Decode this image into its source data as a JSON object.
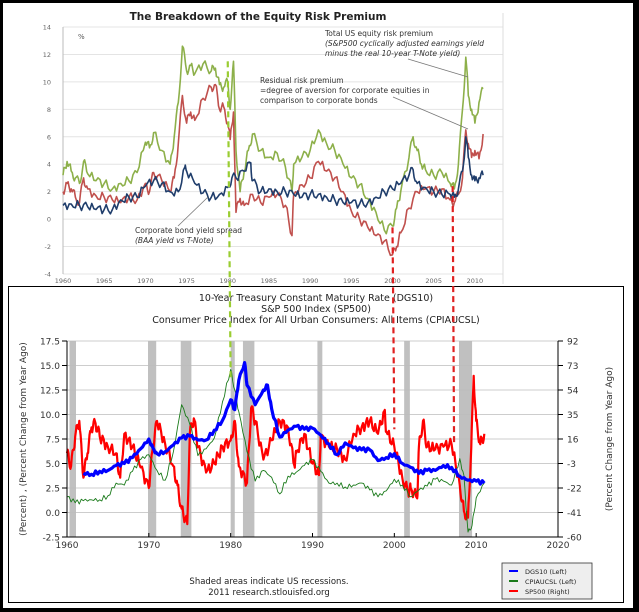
{
  "chart_data": [
    {
      "type": "line",
      "title": "The Breakdown of the Equity Risk Premium",
      "ylabel": "%",
      "xlim": [
        1960,
        2012
      ],
      "ylim": [
        -4,
        14
      ],
      "yticks": [
        14,
        12,
        10,
        8,
        6,
        4,
        2,
        0,
        -2,
        -4
      ],
      "xticks": [
        1960,
        1965,
        1970,
        1975,
        1980,
        1985,
        1990,
        1995,
        2000,
        2005,
        2010
      ],
      "grid": true,
      "annotations": [
        {
          "lines": [
            "Total US equity risk premium",
            "(S&P500 cyclically adjusted earnings yield",
            "minus the real 10-year T-Note yield)"
          ]
        },
        {
          "lines": [
            "Residual risk premium",
            "=degree of aversion for corporate equities in",
            "comparison to corporate bonds"
          ]
        },
        {
          "lines": [
            "Corporate bond yield spread",
            "(BAA yield vs T-Note)"
          ]
        }
      ],
      "series": [
        {
          "name": "Total US equity risk premium",
          "color": "#8db04a",
          "x": [
            1960,
            1960.5,
            1961,
            1961.5,
            1962,
            1962.5,
            1963,
            1964,
            1965,
            1966,
            1967,
            1968,
            1969,
            1970,
            1970.5,
            1971,
            1972,
            1973,
            1973.5,
            1974,
            1974.5,
            1975,
            1975.5,
            1976,
            1977,
            1978,
            1978.5,
            1979,
            1979.5,
            1980,
            1980.3,
            1980.7,
            1981,
            1981.5,
            1982,
            1982.5,
            1983,
            1984,
            1985,
            1986,
            1987,
            1987.8,
            1988,
            1989,
            1990,
            1991,
            1992,
            1993,
            1994,
            1995,
            1996,
            1997,
            1998,
            1999,
            2000,
            2000.5,
            2001,
            2002,
            2002.5,
            2003,
            2003.5,
            2004,
            2005,
            2006,
            2007,
            2007.5,
            2008,
            2008.5,
            2008.9,
            2009.2,
            2009.6,
            2010,
            2010.5,
            2011
          ],
          "y": [
            3.2,
            4.2,
            3.5,
            3.0,
            2.6,
            4.2,
            3.3,
            2.8,
            2.6,
            2.2,
            2.6,
            2.8,
            3.4,
            5.6,
            5.2,
            6.3,
            5.0,
            4.0,
            6.0,
            8.5,
            12.6,
            10.8,
            11.2,
            10.6,
            11.3,
            10.8,
            11.0,
            9.8,
            9.6,
            10.0,
            8.0,
            11.5,
            5.0,
            2.0,
            3.5,
            5.0,
            6.2,
            5.0,
            4.5,
            4.8,
            3.8,
            2.0,
            4.0,
            4.5,
            5.0,
            6.5,
            5.5,
            5.0,
            4.0,
            3.0,
            2.5,
            1.5,
            0.5,
            -0.8,
            -0.5,
            0.8,
            2.0,
            4.5,
            6.0,
            5.0,
            4.0,
            3.6,
            3.2,
            3.4,
            2.6,
            2.2,
            4.0,
            8.0,
            11.8,
            9.0,
            8.0,
            7.0,
            8.5,
            9.5
          ]
        },
        {
          "name": "Residual risk premium",
          "color": "#c0504d",
          "x": [
            1960,
            1960.5,
            1961,
            1961.5,
            1962,
            1962.5,
            1963,
            1964,
            1965,
            1966,
            1967,
            1968,
            1969,
            1970,
            1970.5,
            1971,
            1972,
            1973,
            1973.5,
            1974,
            1974.5,
            1975,
            1975.5,
            1976,
            1977,
            1978,
            1978.5,
            1979,
            1979.5,
            1980,
            1980.3,
            1980.7,
            1981,
            1981.5,
            1982,
            1983,
            1984,
            1985,
            1986,
            1987,
            1987.8,
            1988,
            1989,
            1990,
            1991,
            1992,
            1993,
            1994,
            1995,
            1996,
            1997,
            1998,
            1999,
            2000,
            2000.5,
            2001,
            2002,
            2003,
            2004,
            2005,
            2006,
            2007,
            2007.5,
            2008,
            2008.5,
            2008.9,
            2009.2,
            2009.6,
            2010,
            2010.5,
            2011
          ],
          "y": [
            2.0,
            2.6,
            2.2,
            1.6,
            1.2,
            3.0,
            2.2,
            1.7,
            1.6,
            1.4,
            1.2,
            1.6,
            1.4,
            2.6,
            2.0,
            3.4,
            2.8,
            2.0,
            3.0,
            5.5,
            9.0,
            7.0,
            7.8,
            7.2,
            8.8,
            9.6,
            9.8,
            8.0,
            8.2,
            7.0,
            5.8,
            7.8,
            0.5,
            1.5,
            1.0,
            1.8,
            1.2,
            1.6,
            1.8,
            1.0,
            -1.2,
            1.8,
            2.5,
            3.0,
            4.2,
            3.5,
            3.0,
            2.0,
            0.6,
            0.0,
            -0.6,
            -1.2,
            -1.6,
            -2.6,
            -2.0,
            -1.0,
            0.8,
            2.0,
            2.2,
            2.0,
            2.2,
            1.4,
            1.2,
            1.8,
            3.0,
            6.5,
            5.5,
            4.5,
            5.0,
            4.4,
            6.2
          ]
        },
        {
          "name": "Corporate bond yield spread",
          "color": "#1f3d6b",
          "x": [
            1960,
            1961,
            1962,
            1963,
            1964,
            1965,
            1966,
            1967,
            1968,
            1969,
            1970,
            1971,
            1972,
            1973,
            1974,
            1974.8,
            1975,
            1976,
            1977,
            1978,
            1979,
            1980,
            1980.5,
            1981,
            1982,
            1982.8,
            1983,
            1984,
            1985,
            1986,
            1987,
            1988,
            1989,
            1990,
            1991,
            1992,
            1993,
            1994,
            1995,
            1996,
            1997,
            1998,
            1999,
            2000,
            2001,
            2002,
            2002.5,
            2003,
            2004,
            2005,
            2006,
            2007,
            2007.5,
            2008,
            2008.5,
            2008.9,
            2009.2,
            2009.6,
            2010,
            2010.5,
            2011
          ],
          "y": [
            1.0,
            1.1,
            1.0,
            0.9,
            0.7,
            0.7,
            0.7,
            1.4,
            1.6,
            1.6,
            2.4,
            2.8,
            2.6,
            2.0,
            2.0,
            3.8,
            3.5,
            2.6,
            1.9,
            1.6,
            1.8,
            2.3,
            3.0,
            3.0,
            3.5,
            4.1,
            2.8,
            2.0,
            2.2,
            2.0,
            2.0,
            1.8,
            1.6,
            1.8,
            1.8,
            1.6,
            1.4,
            1.2,
            1.2,
            1.1,
            1.2,
            1.6,
            2.0,
            2.2,
            2.6,
            3.2,
            3.6,
            2.6,
            2.3,
            2.0,
            1.8,
            1.8,
            1.6,
            2.2,
            3.5,
            6.0,
            4.5,
            3.2,
            2.8,
            3.0,
            3.2
          ]
        }
      ],
      "reference_lines": [
        {
          "x": 1980,
          "color": "#9acd32",
          "style": "dashed"
        },
        {
          "x": 2000,
          "color": "#e02020",
          "style": "dashed"
        },
        {
          "x": 2007.3,
          "color": "#e02020",
          "style": "dashed"
        }
      ]
    },
    {
      "type": "line",
      "title_lines": [
        "10-Year Treasury Constant Maturity Rate (DGS10)",
        "S&P 500 Index (SP500)",
        "Consumer Price Index for All Urban Consumers: All Items (CPIAUCSL)"
      ],
      "ylabel_left": "(Percent) , (Percent Change from Year Ago)",
      "ylabel_right": "(Percent Change from Year Ago)",
      "xlim": [
        1960,
        2020
      ],
      "ylim_left": [
        -2.5,
        17.5
      ],
      "ylim_right": [
        -60,
        92
      ],
      "yticks_left": [
        "17.5",
        "15.0",
        "12.5",
        "10.0",
        "7.5",
        "5.0",
        "2.5",
        "0.0",
        "-2.5"
      ],
      "yticks_right": [
        "92",
        "73",
        "54",
        "35",
        "16",
        "-3",
        "-22",
        "-41",
        "-60"
      ],
      "xticks": [
        "1960",
        "1970",
        "1980",
        "1990",
        "2000",
        "2010",
        "2020"
      ],
      "grid": true,
      "footnote": [
        "Shaded areas indicate US recessions.",
        "2011 research.stlouisfed.org"
      ],
      "legend_position": "bottom-right",
      "legend": [
        "DGS10 (Left)",
        "CPIAUCSL (Left)",
        "SP500 (Right)"
      ],
      "recessions": [
        [
          1960.3,
          1961.1
        ],
        [
          1969.9,
          1970.9
        ],
        [
          1973.9,
          1975.2
        ],
        [
          1980.0,
          1980.5
        ],
        [
          1981.5,
          1982.9
        ],
        [
          1990.6,
          1991.2
        ],
        [
          2001.2,
          2001.9
        ],
        [
          2007.9,
          2009.5
        ]
      ],
      "series": [
        {
          "name": "DGS10 (Left)",
          "color": "#0000ff",
          "axis": "left",
          "x": [
            1962,
            1963,
            1964,
            1965,
            1966,
            1967,
            1968,
            1969,
            1970,
            1970.5,
            1971,
            1972,
            1973,
            1974,
            1975,
            1976,
            1977,
            1978,
            1979,
            1980,
            1980.5,
            1981,
            1981.7,
            1982,
            1983,
            1984,
            1984.5,
            1985,
            1986,
            1987,
            1988,
            1989,
            1990,
            1991,
            1992,
            1993,
            1994,
            1995,
            1996,
            1997,
            1998,
            1999,
            2000,
            2001,
            2002,
            2003,
            2004,
            2005,
            2006,
            2007,
            2008,
            2009,
            2010,
            2011
          ],
          "y": [
            4.0,
            3.9,
            4.2,
            4.3,
            4.8,
            5.0,
            5.6,
            6.5,
            7.5,
            6.6,
            6.0,
            6.2,
            6.9,
            7.6,
            7.8,
            7.4,
            7.4,
            8.4,
            9.4,
            11.5,
            10.5,
            13.5,
            15.3,
            13.0,
            11.0,
            12.5,
            13.0,
            10.6,
            7.7,
            8.4,
            8.8,
            8.5,
            8.6,
            7.9,
            7.0,
            5.9,
            7.1,
            6.6,
            6.4,
            6.4,
            5.3,
            5.6,
            6.0,
            5.0,
            4.6,
            4.0,
            4.3,
            4.3,
            4.8,
            4.6,
            3.7,
            3.3,
            3.2,
            3.0
          ]
        },
        {
          "name": "CPIAUCSL (Left)",
          "color": "#1a7a1a",
          "axis": "left",
          "x": [
            1960,
            1961,
            1962,
            1963,
            1964,
            1965,
            1966,
            1967,
            1968,
            1969,
            1970,
            1971,
            1972,
            1973,
            1974,
            1975,
            1976,
            1977,
            1978,
            1979,
            1980,
            1980.5,
            1981,
            1982,
            1983,
            1984,
            1985,
            1986,
            1987,
            1988,
            1989,
            1990,
            1991,
            1992,
            1993,
            1994,
            1995,
            1996,
            1997,
            1998,
            1999,
            2000,
            2001,
            2002,
            2003,
            2004,
            2005,
            2006,
            2007,
            2008,
            2008.5,
            2009,
            2009.5,
            2010,
            2011
          ],
          "y": [
            1.6,
            1.0,
            1.2,
            1.3,
            1.3,
            1.7,
            3.0,
            2.8,
            4.2,
            5.4,
            5.9,
            4.3,
            3.3,
            6.2,
            11.0,
            9.0,
            5.8,
            6.5,
            7.6,
            11.3,
            14.6,
            12.5,
            10.3,
            6.2,
            3.2,
            4.3,
            3.6,
            1.9,
            3.7,
            4.1,
            4.8,
            5.4,
            4.2,
            3.0,
            3.0,
            2.6,
            2.8,
            3.0,
            2.3,
            1.6,
            2.2,
            3.4,
            2.8,
            1.6,
            2.3,
            2.7,
            3.4,
            3.2,
            2.8,
            5.5,
            3.8,
            -2.0,
            -1.3,
            1.5,
            3.0
          ]
        },
        {
          "name": "SP500 (Right)",
          "color": "#ff0000",
          "axis": "right",
          "x": [
            1960,
            1960.5,
            1961,
            1961.5,
            1962,
            1962.5,
            1963,
            1963.5,
            1964,
            1965,
            1966,
            1966.5,
            1967,
            1968,
            1969,
            1970,
            1970.5,
            1971,
            1972,
            1973,
            1973.5,
            1974,
            1974.7,
            1975,
            1975.5,
            1976,
            1977,
            1978,
            1979,
            1980,
            1980.5,
            1981,
            1982,
            1982.5,
            1983,
            1984,
            1985,
            1986,
            1987,
            1987.8,
            1988,
            1989,
            1990,
            1990.8,
            1991,
            1992,
            1993,
            1994,
            1995,
            1996,
            1997,
            1998,
            1998.8,
            1999,
            2000,
            2001,
            2001.7,
            2002,
            2002.8,
            2003,
            2003.5,
            2004,
            2005,
            2006,
            2007,
            2008,
            2008.5,
            2009,
            2009.4,
            2009.7,
            2010,
            2010.5,
            2011
          ],
          "y": [
            5,
            -5,
            18,
            30,
            -14,
            5,
            25,
            28,
            18,
            10,
            5,
            -14,
            20,
            10,
            -6,
            -22,
            10,
            30,
            12,
            -5,
            -20,
            -38,
            -50,
            20,
            32,
            10,
            -10,
            -3,
            10,
            15,
            30,
            -5,
            -18,
            40,
            30,
            0,
            15,
            30,
            25,
            -5,
            5,
            20,
            -3,
            -12,
            18,
            10,
            8,
            0,
            20,
            25,
            30,
            20,
            38,
            22,
            10,
            -15,
            -25,
            -22,
            -30,
            10,
            30,
            10,
            8,
            10,
            12,
            -20,
            -40,
            -45,
            10,
            65,
            30,
            12,
            20
          ]
        }
      ],
      "reference_lines": [
        {
          "x": 1980,
          "color": "#9acd32",
          "style": "dashed"
        },
        {
          "x": 2000,
          "color": "#e02020",
          "style": "dashed"
        },
        {
          "x": 2007.3,
          "color": "#e02020",
          "style": "dashed"
        }
      ]
    }
  ],
  "colors": {
    "top_green": "#8db04a",
    "top_red": "#c0504d",
    "top_navy": "#1f3d6b",
    "dgs10": "#0000ff",
    "cpi": "#1a7a1a",
    "sp500": "#ff0000",
    "recession": "#c0c0c0",
    "dash_green": "#9acd32",
    "dash_red": "#e02020"
  }
}
